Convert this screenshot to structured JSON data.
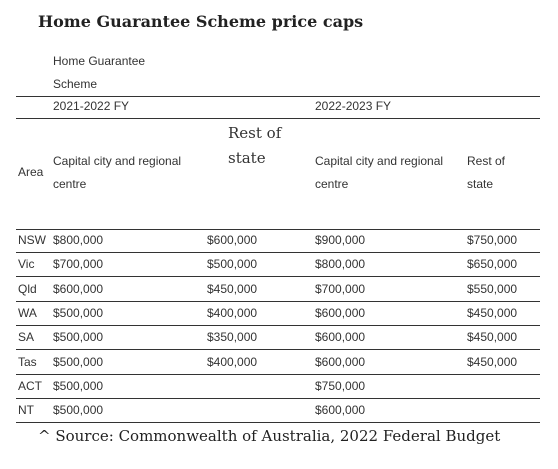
{
  "title": "Home Guarantee Scheme price caps",
  "table": {
    "group_header": "Home Guarantee Scheme",
    "periods": [
      "2021-2022 FY",
      "2022-2023 FY"
    ],
    "columns": [
      "Area",
      "Capital city and regional centre",
      "Rest of state",
      "Capital city and regional centre",
      "Rest of state"
    ],
    "rows": [
      [
        "NSW",
        "$800,000",
        "$600,000",
        "$900,000",
        "$750,000"
      ],
      [
        "Vic",
        "$700,000",
        "$500,000",
        "$800,000",
        "$650,000"
      ],
      [
        "Qld",
        "$600,000",
        "$450,000",
        "$700,000",
        "$550,000"
      ],
      [
        "WA",
        "$500,000",
        "$400,000",
        "$600,000",
        "$450,000"
      ],
      [
        "SA",
        "$500,000",
        "$350,000",
        "$600,000",
        "$450,000"
      ],
      [
        "Tas",
        "$500,000",
        "$400,000",
        "$600,000",
        "$450,000"
      ],
      [
        "ACT",
        "$500,000",
        null,
        "$750,000",
        null
      ],
      [
        "NT",
        "$500,000",
        null,
        "$600,000",
        null
      ]
    ]
  },
  "source": "^ Source: Commonwealth of Australia, 2022 Federal Budget"
}
